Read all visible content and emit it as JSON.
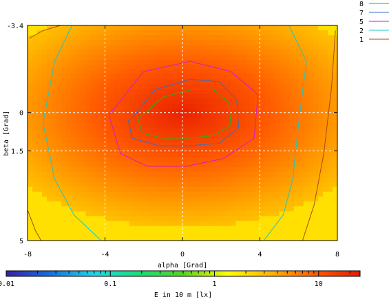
{
  "chart_data": {
    "type": "heatmap",
    "title": "",
    "xlabel": "alpha [Grad]",
    "ylabel": "beta [Grad]",
    "xlim": [
      -8,
      8
    ],
    "ylim": [
      -3.4,
      5
    ],
    "x_ticks": [
      -8,
      -4,
      0,
      4,
      8
    ],
    "x_tick_labels": [
      "-8",
      "-4",
      "0",
      "4",
      "8"
    ],
    "y_ticks": [
      -3.4,
      0,
      1.5,
      5
    ],
    "y_tick_labels": [
      "-3.4",
      "0",
      "1.5",
      "5"
    ],
    "grid": true,
    "legend_position": "top-right",
    "colorbar": {
      "label": "E in 10 m [lx]",
      "scale": "log",
      "range": [
        0.01,
        25
      ],
      "tick_labels": [
        "0.01",
        "0.1",
        "1",
        "10"
      ],
      "tick_values": [
        0.01,
        0.1,
        1,
        10
      ],
      "colors": [
        "#3a1fa8",
        "#1570e0",
        "#1fd8e8",
        "#13e07a",
        "#55d61e",
        "#ffff00",
        "#ffb400",
        "#ff5a00",
        "#e81a00"
      ]
    },
    "field_model": {
      "peak_lx": 22,
      "center": [
        0,
        0
      ],
      "alpha_scale": 6.0,
      "beta_scale": 2.6,
      "falloff_exponent": 1.0,
      "plateau_lx": 3.0,
      "green_lx": 2.0
    },
    "series": [
      {
        "name": "8",
        "color": "#22b422",
        "alpha": [
          -2.2,
          -1.0,
          0.5,
          1.6,
          2.4,
          2.5,
          1.6,
          0.3,
          -1.0,
          -2.1,
          -2.3
        ],
        "beta": [
          0.2,
          -0.6,
          -0.9,
          -0.9,
          -0.4,
          0.5,
          0.9,
          1.0,
          1.0,
          0.8,
          0.2
        ]
      },
      {
        "name": "7",
        "color": "#2f6fd0",
        "alpha": [
          -2.7,
          -1.4,
          0.4,
          1.9,
          2.8,
          2.9,
          1.9,
          0.3,
          -1.2,
          -2.6,
          -2.8
        ],
        "beta": [
          0.3,
          -0.9,
          -1.3,
          -1.2,
          -0.5,
          0.6,
          1.2,
          1.3,
          1.3,
          1.0,
          0.3
        ]
      },
      {
        "name": "5",
        "color": "#d01ad0",
        "alpha": [
          -3.8,
          -2.0,
          0.4,
          2.5,
          3.9,
          3.7,
          2.1,
          0.2,
          -1.8,
          -3.2,
          -3.8
        ],
        "beta": [
          0.1,
          -1.6,
          -2.0,
          -1.6,
          -0.7,
          1.0,
          1.8,
          2.1,
          2.1,
          1.6,
          0.1
        ]
      },
      {
        "name": "2",
        "color": "#18c8c8",
        "alpha": [
          -5.7,
          -6.6,
          -7.2,
          -6.6,
          -5.6,
          -4.2
        ],
        "beta": [
          -3.4,
          -2.0,
          0.4,
          2.6,
          4.0,
          5.0
        ]
      },
      {
        "name": "1",
        "color": "#a84a14",
        "alpha": [
          -7.9,
          -7.2,
          -6.3
        ],
        "beta": [
          -2.9,
          -3.2,
          -3.4
        ]
      }
    ],
    "extra_contours": [
      {
        "series": "2",
        "alpha": [
          5.5,
          6.4,
          6.0,
          5.7,
          5.2,
          4.2
        ],
        "beta": [
          -3.4,
          -2.0,
          0.4,
          2.6,
          4.0,
          5.0
        ]
      },
      {
        "series": "1",
        "alpha": [
          7.9,
          7.7,
          7.3,
          6.8,
          6.2
        ],
        "beta": [
          -3.2,
          -1.0,
          1.6,
          3.6,
          5.0
        ]
      },
      {
        "series": "1",
        "alpha": [
          -8.0,
          -7.6,
          -7.3
        ],
        "beta": [
          3.8,
          4.6,
          5.0
        ]
      }
    ]
  }
}
